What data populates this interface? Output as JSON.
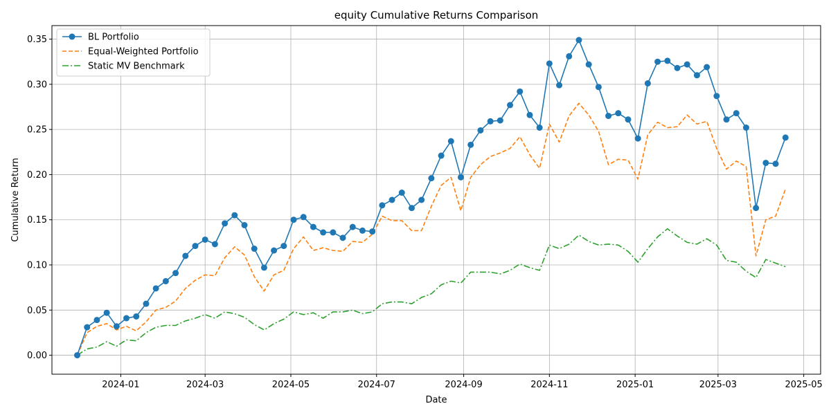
{
  "chart_data": {
    "type": "line",
    "title": "equity Cumulative Returns Comparison",
    "xlabel": "Date",
    "ylabel": "Cumulative Return",
    "xlim": [
      "2023-11-13",
      "2025-05-13"
    ],
    "ylim": [
      -0.021,
      0.365
    ],
    "grid": true,
    "legend_position": "upper-left",
    "x_ticks": [
      {
        "date": "2024-01-01",
        "label": "2024-01"
      },
      {
        "date": "2024-03-01",
        "label": "2024-03"
      },
      {
        "date": "2024-05-01",
        "label": "2024-05"
      },
      {
        "date": "2024-07-01",
        "label": "2024-07"
      },
      {
        "date": "2024-09-01",
        "label": "2024-09"
      },
      {
        "date": "2024-11-01",
        "label": "2024-11"
      },
      {
        "date": "2025-01-01",
        "label": "2025-01"
      },
      {
        "date": "2025-03-01",
        "label": "2025-03"
      },
      {
        "date": "2025-05-01",
        "label": "2025-05"
      }
    ],
    "y_ticks": [
      {
        "value": 0.0,
        "label": "0.00"
      },
      {
        "value": 0.05,
        "label": "0.05"
      },
      {
        "value": 0.1,
        "label": "0.10"
      },
      {
        "value": 0.15,
        "label": "0.15"
      },
      {
        "value": 0.2,
        "label": "0.20"
      },
      {
        "value": 0.25,
        "label": "0.25"
      },
      {
        "value": 0.3,
        "label": "0.30"
      },
      {
        "value": 0.35,
        "label": "0.35"
      }
    ],
    "x": [
      "2023-12-01",
      "2023-12-08",
      "2023-12-15",
      "2023-12-22",
      "2023-12-29",
      "2024-01-05",
      "2024-01-12",
      "2024-01-19",
      "2024-01-26",
      "2024-02-02",
      "2024-02-09",
      "2024-02-16",
      "2024-02-23",
      "2024-03-01",
      "2024-03-08",
      "2024-03-15",
      "2024-03-22",
      "2024-03-29",
      "2024-04-05",
      "2024-04-12",
      "2024-04-19",
      "2024-04-26",
      "2024-05-03",
      "2024-05-10",
      "2024-05-17",
      "2024-05-24",
      "2024-05-31",
      "2024-06-07",
      "2024-06-14",
      "2024-06-21",
      "2024-06-28",
      "2024-07-05",
      "2024-07-12",
      "2024-07-19",
      "2024-07-26",
      "2024-08-02",
      "2024-08-09",
      "2024-08-16",
      "2024-08-23",
      "2024-08-30",
      "2024-09-06",
      "2024-09-13",
      "2024-09-20",
      "2024-09-27",
      "2024-10-04",
      "2024-10-11",
      "2024-10-18",
      "2024-10-25",
      "2024-11-01",
      "2024-11-08",
      "2024-11-15",
      "2024-11-22",
      "2024-11-29",
      "2024-12-06",
      "2024-12-13",
      "2024-12-20",
      "2024-12-27",
      "2025-01-03",
      "2025-01-10",
      "2025-01-17",
      "2025-01-24",
      "2025-01-31",
      "2025-02-07",
      "2025-02-14",
      "2025-02-21",
      "2025-02-28",
      "2025-03-07",
      "2025-03-14",
      "2025-03-21",
      "2025-03-28",
      "2025-04-04",
      "2025-04-11",
      "2025-04-18"
    ],
    "series": [
      {
        "name": "BL Portfolio",
        "color": "#1f77b4",
        "style": "solid-marker",
        "values": [
          0.0,
          0.031,
          0.039,
          0.047,
          0.032,
          0.041,
          0.043,
          0.057,
          0.074,
          0.082,
          0.091,
          0.11,
          0.121,
          0.128,
          0.123,
          0.146,
          0.155,
          0.144,
          0.118,
          0.097,
          0.116,
          0.121,
          0.15,
          0.153,
          0.142,
          0.136,
          0.136,
          0.13,
          0.142,
          0.138,
          0.137,
          0.166,
          0.172,
          0.18,
          0.163,
          0.172,
          0.196,
          0.221,
          0.237,
          0.197,
          0.233,
          0.249,
          0.259,
          0.26,
          0.277,
          0.292,
          0.266,
          0.252,
          0.323,
          0.299,
          0.331,
          0.349,
          0.322,
          0.297,
          0.265,
          0.268,
          0.261,
          0.24,
          0.301,
          0.325,
          0.326,
          0.318,
          0.322,
          0.31,
          0.319,
          0.287,
          0.261,
          0.268,
          0.252,
          0.163,
          0.213,
          0.212,
          0.241
        ]
      },
      {
        "name": "Equal-Weighted Portfolio",
        "color": "#ff7f0e",
        "style": "dashed",
        "values": [
          0.0,
          0.025,
          0.032,
          0.035,
          0.028,
          0.032,
          0.027,
          0.037,
          0.05,
          0.053,
          0.06,
          0.074,
          0.083,
          0.089,
          0.088,
          0.108,
          0.12,
          0.111,
          0.087,
          0.071,
          0.089,
          0.094,
          0.118,
          0.131,
          0.116,
          0.119,
          0.116,
          0.115,
          0.126,
          0.125,
          0.134,
          0.154,
          0.149,
          0.149,
          0.138,
          0.138,
          0.165,
          0.188,
          0.197,
          0.16,
          0.197,
          0.211,
          0.22,
          0.224,
          0.229,
          0.242,
          0.222,
          0.207,
          0.256,
          0.236,
          0.265,
          0.279,
          0.266,
          0.248,
          0.211,
          0.217,
          0.216,
          0.195,
          0.244,
          0.258,
          0.252,
          0.253,
          0.266,
          0.256,
          0.259,
          0.229,
          0.206,
          0.215,
          0.209,
          0.11,
          0.15,
          0.154,
          0.184
        ]
      },
      {
        "name": "Static MV Benchmark",
        "color": "#2ca02c",
        "style": "dashdot",
        "values": [
          0.0,
          0.007,
          0.009,
          0.015,
          0.01,
          0.017,
          0.016,
          0.025,
          0.031,
          0.033,
          0.033,
          0.038,
          0.041,
          0.045,
          0.041,
          0.048,
          0.046,
          0.042,
          0.034,
          0.028,
          0.035,
          0.04,
          0.048,
          0.045,
          0.047,
          0.041,
          0.048,
          0.048,
          0.05,
          0.046,
          0.048,
          0.057,
          0.059,
          0.059,
          0.057,
          0.064,
          0.068,
          0.078,
          0.082,
          0.08,
          0.092,
          0.092,
          0.092,
          0.09,
          0.094,
          0.101,
          0.097,
          0.094,
          0.122,
          0.118,
          0.123,
          0.133,
          0.126,
          0.122,
          0.123,
          0.122,
          0.115,
          0.103,
          0.118,
          0.131,
          0.14,
          0.132,
          0.125,
          0.123,
          0.129,
          0.122,
          0.105,
          0.103,
          0.093,
          0.086,
          0.106,
          0.102,
          0.098
        ]
      }
    ]
  }
}
